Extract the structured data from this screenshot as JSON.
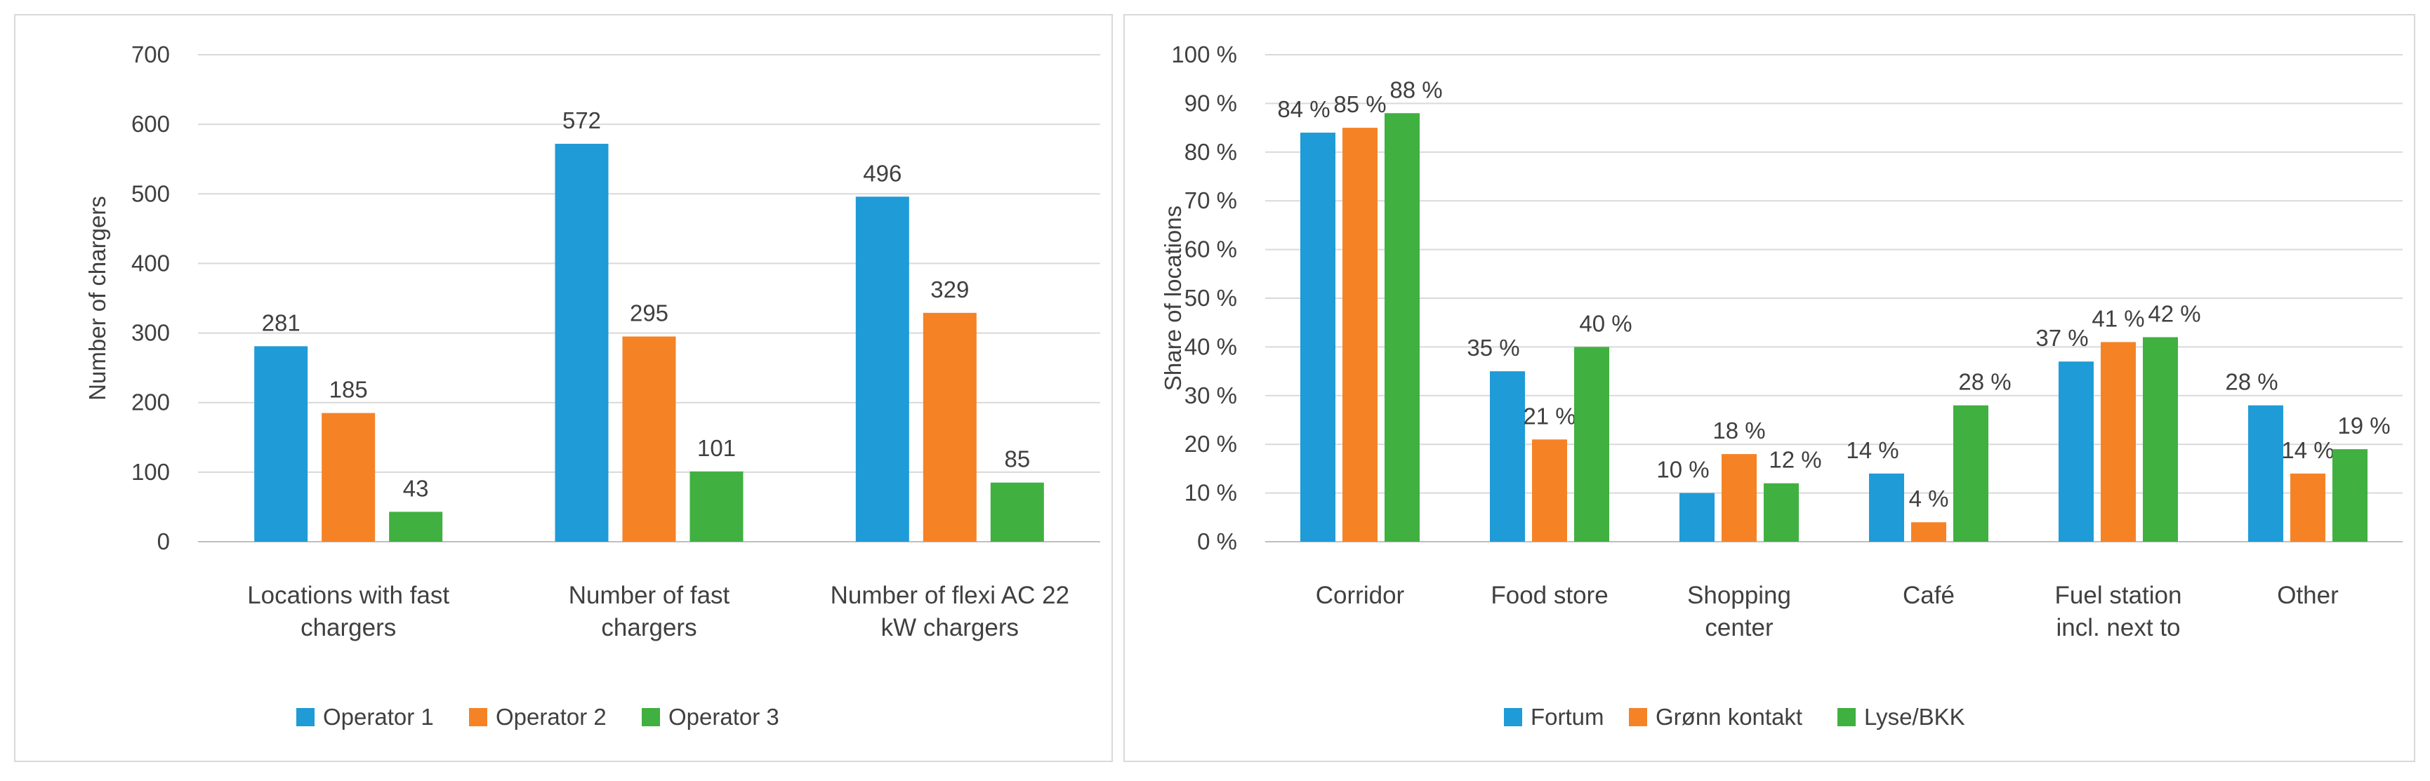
{
  "colors": {
    "blue": "#1f9bd7",
    "orange": "#f58326",
    "green": "#40b041",
    "grid": "#d9d9d9",
    "text": "#404040"
  },
  "chart_data": [
    {
      "type": "bar",
      "title": "",
      "xlabel": "",
      "ylabel": "Number of chargers",
      "ylim": [
        0,
        700
      ],
      "yticks": [
        "0",
        "100",
        "200",
        "300",
        "400",
        "500",
        "600",
        "700"
      ],
      "categories": [
        [
          "Locations with fast",
          "chargers"
        ],
        [
          "Number of fast",
          "chargers"
        ],
        [
          "Number of flexi AC 22",
          "kW chargers"
        ]
      ],
      "series": [
        {
          "name": "Operator 1",
          "color": "#1f9bd7",
          "values": [
            281,
            572,
            496
          ],
          "labels": [
            "281",
            "572",
            "496"
          ]
        },
        {
          "name": "Operator 2",
          "color": "#f58326",
          "values": [
            185,
            295,
            329
          ],
          "labels": [
            "185",
            "295",
            "329"
          ]
        },
        {
          "name": "Operator 3",
          "color": "#40b041",
          "values": [
            43,
            101,
            85
          ],
          "labels": [
            "43",
            "101",
            "85"
          ]
        }
      ],
      "legend": "bottom",
      "grid": true
    },
    {
      "type": "bar",
      "title": "",
      "xlabel": "",
      "ylabel": "Share of locations",
      "ylim": [
        0,
        100
      ],
      "yticks": [
        "0 %",
        "10 %",
        "20 %",
        "30 %",
        "40 %",
        "50 %",
        "60 %",
        "70 %",
        "80 %",
        "90 %",
        "100 %"
      ],
      "categories": [
        [
          "Corridor"
        ],
        [
          "Food store"
        ],
        [
          "Shopping",
          "center"
        ],
        [
          "Café"
        ],
        [
          "Fuel station",
          "incl. next to"
        ],
        [
          "Other"
        ]
      ],
      "series": [
        {
          "name": "Fortum",
          "color": "#1f9bd7",
          "values": [
            84,
            35,
            10,
            14,
            37,
            28
          ],
          "labels": [
            "84 %",
            "35 %",
            "10 %",
            "14 %",
            "37 %",
            "28 %"
          ]
        },
        {
          "name": "Grønn kontakt",
          "color": "#f58326",
          "values": [
            85,
            21,
            18,
            4,
            41,
            14
          ],
          "labels": [
            "85 %",
            "21 %",
            "18 %",
            "4 %",
            "41 %",
            "14 %"
          ]
        },
        {
          "name": "Lyse/BKK",
          "color": "#40b041",
          "values": [
            88,
            40,
            12,
            28,
            42,
            19
          ],
          "labels": [
            "88 %",
            "40 %",
            "12 %",
            "28 %",
            "42 %",
            "19 %"
          ]
        }
      ],
      "legend": "bottom",
      "grid": true
    }
  ]
}
